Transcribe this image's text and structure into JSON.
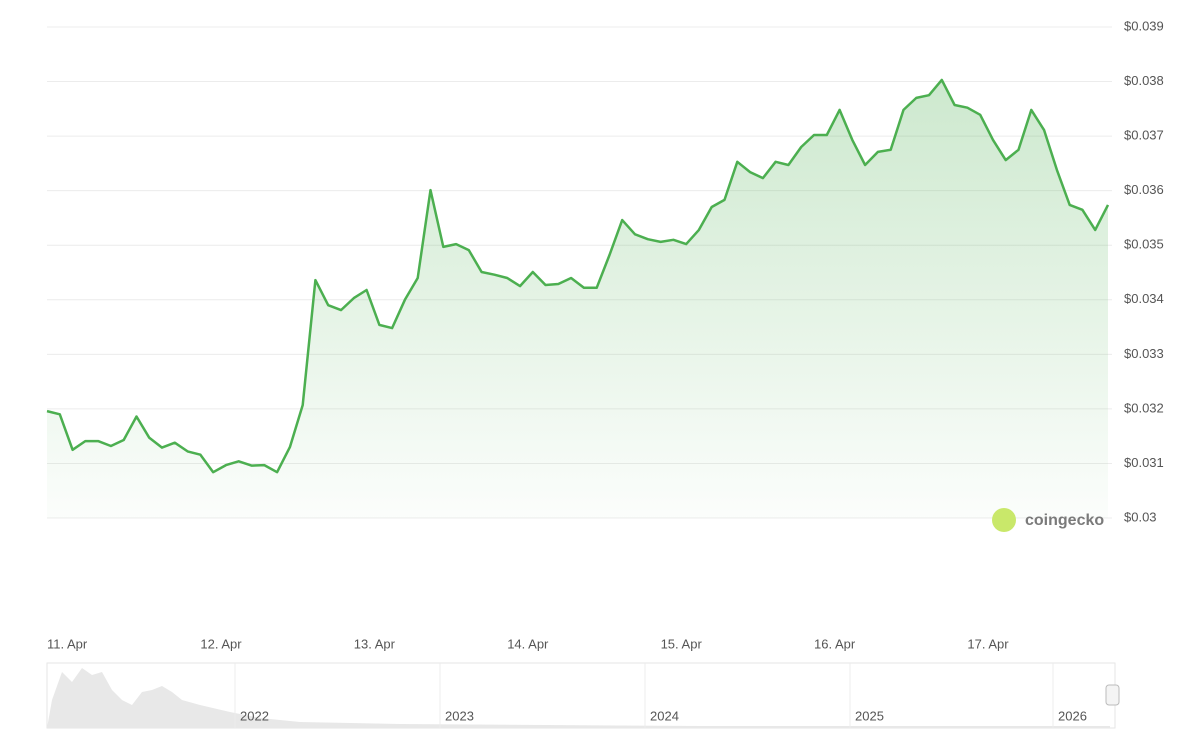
{
  "chart_data": {
    "type": "line",
    "categories": [
      "11. Apr",
      null,
      null,
      null,
      null,
      null,
      null,
      null,
      null,
      null,
      null,
      null,
      "12. Apr",
      null,
      null,
      null,
      null,
      null,
      null,
      null,
      null,
      null,
      null,
      null,
      "13. Apr",
      null,
      null,
      null,
      null,
      null,
      null,
      null,
      null,
      null,
      null,
      null,
      "14. Apr",
      null,
      null,
      null,
      null,
      null,
      null,
      null,
      null,
      null,
      null,
      null,
      "15. Apr",
      null,
      null,
      null,
      null,
      null,
      null,
      null,
      null,
      null,
      null,
      null,
      "16. Apr",
      null,
      null,
      null,
      null,
      null,
      null,
      null,
      null,
      null,
      null,
      null,
      "17. Apr",
      null,
      null,
      null,
      null,
      null,
      null,
      null,
      null,
      null,
      null,
      null
    ],
    "series": [
      {
        "color": "#4caf50",
        "values": [
          0.03196,
          0.0319,
          0.03125,
          0.03141,
          0.03141,
          0.03132,
          0.03143,
          0.03186,
          0.03147,
          0.03129,
          0.03138,
          0.03122,
          0.03116,
          0.03084,
          0.03097,
          0.03104,
          0.03096,
          0.03097,
          0.03084,
          0.0313,
          0.03207,
          0.03436,
          0.0339,
          0.03381,
          0.03403,
          0.03418,
          0.03354,
          0.03348,
          0.034,
          0.0344,
          0.03601,
          0.03497,
          0.03502,
          0.03491,
          0.03451,
          0.03446,
          0.0344,
          0.03425,
          0.03451,
          0.03427,
          0.03429,
          0.0344,
          0.03422,
          0.03422,
          0.03482,
          0.03546,
          0.0352,
          0.03511,
          0.03506,
          0.0351,
          0.03502,
          0.03528,
          0.0357,
          0.03583,
          0.03653,
          0.03634,
          0.03623,
          0.03653,
          0.03647,
          0.0368,
          0.03702,
          0.03702,
          0.03748,
          0.03693,
          0.03647,
          0.03671,
          0.03675,
          0.03748,
          0.0377,
          0.03775,
          0.03803,
          0.03757,
          0.03752,
          0.03739,
          0.03693,
          0.03656,
          0.03675,
          0.03748,
          0.03711,
          0.03638,
          0.03574,
          0.03565,
          0.03528,
          0.03574
        ]
      }
    ],
    "ylim": [
      0.03,
      0.039
    ],
    "yticks": [
      {
        "value": 0.039,
        "label": "$0.039"
      },
      {
        "value": 0.038,
        "label": "$0.038"
      },
      {
        "value": 0.037,
        "label": "$0.037"
      },
      {
        "value": 0.036,
        "label": "$0.036"
      },
      {
        "value": 0.035,
        "label": "$0.035"
      },
      {
        "value": 0.034,
        "label": "$0.034"
      },
      {
        "value": 0.033,
        "label": "$0.033"
      },
      {
        "value": 0.032,
        "label": "$0.032"
      },
      {
        "value": 0.031,
        "label": "$0.031"
      },
      {
        "value": 0.03,
        "label": "$0.03"
      }
    ],
    "grid": true,
    "watermark": "coingecko",
    "navigator_labels": [
      "2022",
      "2023",
      "2024",
      "2025",
      "2026"
    ]
  }
}
